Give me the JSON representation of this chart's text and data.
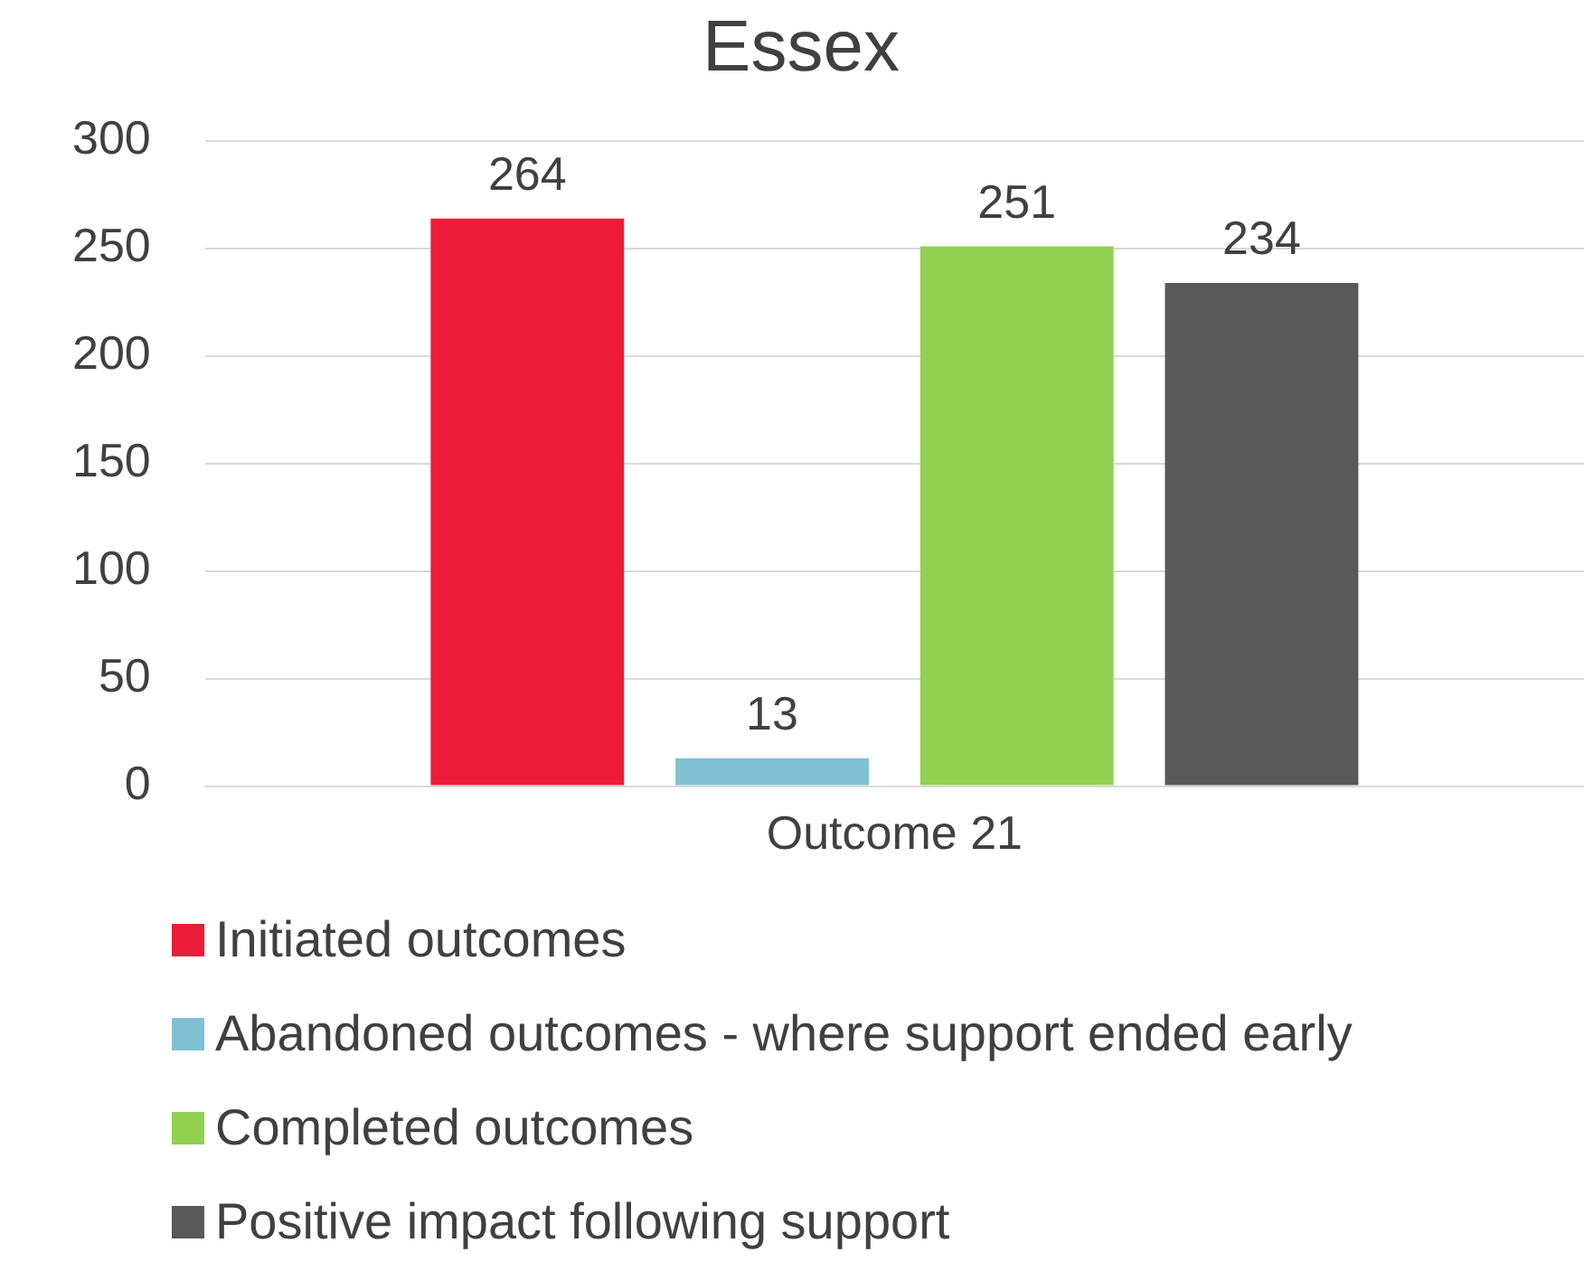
{
  "chart_data": {
    "type": "bar",
    "title": "Essex",
    "categories": [
      "Outcome 21"
    ],
    "series": [
      {
        "name": "Initiated outcomes",
        "color": "#ed1c38",
        "values": [
          264
        ]
      },
      {
        "name": "Abandoned outcomes - where support ended early",
        "color": "#7fc1d3",
        "values": [
          13
        ]
      },
      {
        "name": "Completed outcomes",
        "color": "#92d050",
        "values": [
          251
        ]
      },
      {
        "name": "Positive impact following support",
        "color": "#595959",
        "values": [
          234
        ]
      }
    ],
    "ylim": [
      0,
      300
    ],
    "yticks": [
      0,
      50,
      100,
      150,
      200,
      250,
      300
    ],
    "grid": "y",
    "legend": "bottom",
    "data_labels": true
  }
}
